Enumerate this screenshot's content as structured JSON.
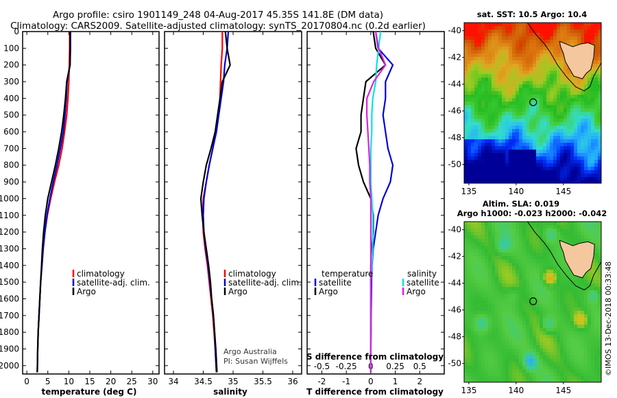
{
  "title_line1": "Argo profile: csiro 1901149_248 04-Aug-2017 45.35S 141.8E (DM data)",
  "title_line2": "Climatology: CARS2009. Satellite-adjusted climatology: synTS_20170804.nc (0.2d earlier)",
  "credit_line1": "Argo Australia",
  "credit_line2": "PI: Susan Wijffels",
  "side_stamp": "©IMOS 13-Dec-2018 00:33:48",
  "colors": {
    "climatology": "#ff0000",
    "satellite": "#0000dd",
    "argo": "#000000",
    "satellite_s": "#00e5e5",
    "argo_s": "#dd22dd"
  },
  "chart_data": [
    {
      "type": "line",
      "xlabel": "temperature (deg C)",
      "ylabel": "",
      "xlim": [
        -1,
        31.5
      ],
      "ylim": [
        2050,
        0
      ],
      "xticks": [
        0,
        5,
        10,
        15,
        20,
        25,
        30
      ],
      "yticks": [
        0,
        100,
        200,
        300,
        400,
        500,
        600,
        700,
        800,
        900,
        1000,
        1100,
        1200,
        1300,
        1400,
        1500,
        1600,
        1700,
        1800,
        1900,
        2000
      ],
      "ytick_labels": [
        "0",
        "100",
        "200",
        "300",
        "400",
        "500",
        "600",
        "700",
        "800",
        "900",
        "1000",
        "1100",
        "1200",
        "1300",
        "1400",
        "1500",
        "1600",
        "1700",
        "1800",
        "1900",
        "2000"
      ],
      "legend": [
        "climatology",
        "satellite-adj. clim.",
        "Argo"
      ],
      "series": [
        {
          "name": "climatology",
          "color": "#ff0000",
          "x": [
            10.2,
            10.2,
            10.1,
            10.0,
            9.8,
            9.5,
            9.0,
            8.4,
            7.6,
            6.6,
            5.7,
            4.9,
            4.3,
            3.9,
            3.6,
            3.3,
            3.1,
            2.9,
            2.7,
            2.6,
            2.5
          ],
          "y": [
            0,
            100,
            200,
            300,
            400,
            500,
            600,
            700,
            800,
            900,
            1000,
            1100,
            1200,
            1300,
            1400,
            1500,
            1600,
            1700,
            1800,
            1900,
            2040
          ]
        },
        {
          "name": "satellite-adj. clim.",
          "color": "#0000dd",
          "x": [
            10.4,
            10.4,
            10.3,
            9.6,
            9.4,
            9.1,
            8.7,
            8.0,
            7.2,
            6.3,
            5.5,
            4.8,
            4.3,
            3.9,
            3.6,
            3.3,
            3.1,
            2.9,
            2.7,
            2.6,
            2.5
          ],
          "y": [
            0,
            100,
            200,
            300,
            400,
            500,
            600,
            700,
            800,
            900,
            1000,
            1100,
            1200,
            1300,
            1400,
            1500,
            1600,
            1700,
            1800,
            1900,
            2040
          ]
        },
        {
          "name": "Argo",
          "color": "#000000",
          "x": [
            10.3,
            10.3,
            10.3,
            9.5,
            9.2,
            8.8,
            8.3,
            7.6,
            6.8,
            5.9,
            5.0,
            4.4,
            4.0,
            3.7,
            3.5,
            3.3,
            3.1,
            2.9,
            2.7,
            2.6,
            2.5
          ],
          "y": [
            0,
            100,
            200,
            300,
            400,
            500,
            600,
            700,
            800,
            900,
            1000,
            1100,
            1200,
            1300,
            1400,
            1500,
            1600,
            1700,
            1800,
            1900,
            2040
          ]
        }
      ]
    },
    {
      "type": "line",
      "xlabel": "salinity",
      "xlim": [
        33.85,
        36.15
      ],
      "ylim": [
        2050,
        0
      ],
      "xticks": [
        34,
        34.5,
        35,
        35.5,
        36
      ],
      "xtick_labels": [
        "34",
        "34.5",
        "35",
        "35.5",
        "36"
      ],
      "yticks": [
        0,
        100,
        200,
        300,
        400,
        500,
        600,
        700,
        800,
        900,
        1000,
        1100,
        1200,
        1300,
        1400,
        1500,
        1600,
        1700,
        1800,
        1900,
        2000
      ],
      "legend": [
        "climatology",
        "satellite-adj. clim.",
        "Argo"
      ],
      "series": [
        {
          "name": "climatology",
          "color": "#ff0000",
          "x": [
            34.82,
            34.82,
            34.8,
            34.79,
            34.78,
            34.75,
            34.71,
            34.66,
            34.6,
            34.55,
            34.5,
            34.49,
            34.5,
            34.53,
            34.57,
            34.6,
            34.63,
            34.66,
            34.68,
            34.7,
            34.72
          ],
          "y": [
            0,
            100,
            200,
            300,
            400,
            500,
            600,
            700,
            800,
            900,
            1000,
            1100,
            1200,
            1300,
            1400,
            1500,
            1600,
            1700,
            1800,
            1900,
            2040
          ]
        },
        {
          "name": "satellite-adj. clim.",
          "color": "#0000dd",
          "x": [
            34.92,
            34.9,
            34.86,
            34.84,
            34.8,
            34.76,
            34.72,
            34.66,
            34.6,
            34.55,
            34.51,
            34.5,
            34.51,
            34.54,
            34.58,
            34.61,
            34.64,
            34.67,
            34.69,
            34.7,
            34.72
          ],
          "y": [
            0,
            100,
            200,
            300,
            400,
            500,
            600,
            700,
            800,
            900,
            1000,
            1100,
            1200,
            1300,
            1400,
            1500,
            1600,
            1700,
            1800,
            1900,
            2040
          ]
        },
        {
          "name": "Argo",
          "color": "#000000",
          "x": [
            34.87,
            34.9,
            34.95,
            34.82,
            34.78,
            34.74,
            34.7,
            34.63,
            34.55,
            34.5,
            34.46,
            34.48,
            34.51,
            34.55,
            34.59,
            34.62,
            34.64,
            34.67,
            34.69,
            34.71,
            34.73
          ],
          "y": [
            0,
            100,
            200,
            300,
            400,
            500,
            600,
            700,
            800,
            900,
            1000,
            1100,
            1200,
            1300,
            1400,
            1500,
            1600,
            1700,
            1800,
            1900,
            2040
          ]
        }
      ]
    },
    {
      "type": "line",
      "xlabel": "T difference from climatology",
      "xlabel_top": "S difference from climatology",
      "xlim": [
        -2.6,
        3.0
      ],
      "xlim_top": [
        -0.65,
        0.75
      ],
      "ylim": [
        2050,
        0
      ],
      "xticks": [
        -2,
        -1,
        0,
        1,
        2
      ],
      "xtick_labels": [
        "-2",
        "-1",
        "0",
        "1",
        "2"
      ],
      "xticks_top": [
        -0.5,
        -0.25,
        0,
        0.25,
        0.5
      ],
      "xtick_labels_top": [
        "-0.5",
        "-0.25",
        "0",
        "0.25",
        "0.5"
      ],
      "yticks": [
        0,
        100,
        200,
        300,
        400,
        500,
        600,
        700,
        800,
        900,
        1000,
        1100,
        1200,
        1300,
        1400,
        1500,
        1600,
        1700,
        1800,
        1900,
        2000
      ],
      "legend_left_header": "temperature",
      "legend_right_header": "salinity",
      "legend_left": [
        "satellite",
        "Argo"
      ],
      "legend_right": [
        "satellite",
        "Argo"
      ],
      "series": [
        {
          "name": "satellite",
          "group": "temperature",
          "color": "#0000dd",
          "x": [
            0.2,
            0.3,
            0.9,
            0.6,
            0.6,
            0.5,
            0.6,
            0.7,
            0.9,
            0.8,
            0.5,
            0.3,
            0.2,
            0.1,
            0.05,
            0.03,
            0.02,
            0.01,
            0.01,
            0.0,
            0.0
          ],
          "y": [
            0,
            100,
            200,
            300,
            400,
            500,
            600,
            700,
            800,
            900,
            1000,
            1100,
            1200,
            1300,
            1400,
            1500,
            1600,
            1700,
            1800,
            1900,
            2040
          ]
        },
        {
          "name": "Argo",
          "group": "temperature",
          "color": "#000000",
          "x": [
            0.1,
            0.2,
            0.6,
            -0.2,
            -0.3,
            -0.4,
            -0.4,
            -0.6,
            -0.5,
            -0.3,
            0.0,
            0.1,
            0.1,
            0.05,
            0.0,
            0.0,
            0.0,
            0.0,
            0.0,
            0.0,
            0.0
          ],
          "y": [
            0,
            100,
            200,
            300,
            400,
            500,
            600,
            700,
            800,
            900,
            1000,
            1100,
            1200,
            1300,
            1400,
            1500,
            1600,
            1700,
            1800,
            1900,
            2040
          ]
        },
        {
          "name": "satellite",
          "group": "salinity",
          "color": "#00e5e5",
          "x": [
            0.1,
            0.08,
            0.06,
            0.05,
            0.02,
            0.01,
            0.01,
            0.0,
            0.0,
            0.0,
            0.01,
            0.02,
            0.02,
            0.02,
            0.01,
            0.0,
            0.0,
            0.0,
            0.0,
            0.0,
            0.0
          ],
          "y": [
            0,
            100,
            200,
            300,
            400,
            500,
            600,
            700,
            800,
            900,
            1000,
            1100,
            1200,
            1300,
            1400,
            1500,
            1600,
            1700,
            1800,
            1900,
            2040
          ]
        },
        {
          "name": "Argo",
          "group": "salinity",
          "color": "#dd22dd",
          "x": [
            0.05,
            0.08,
            0.15,
            0.03,
            -0.04,
            -0.04,
            -0.03,
            -0.02,
            -0.01,
            -0.01,
            0.0,
            0.0,
            0.0,
            0.0,
            0.0,
            0.0,
            0.0,
            0.0,
            0.0,
            0.0,
            0.0
          ],
          "y": [
            0,
            100,
            200,
            300,
            400,
            500,
            600,
            700,
            800,
            900,
            1000,
            1100,
            1200,
            1300,
            1400,
            1500,
            1600,
            1700,
            1800,
            1900,
            2040
          ]
        }
      ]
    },
    {
      "type": "heatmap",
      "title": "sat. SST: 10.5 Argo: 10.4",
      "xlim": [
        134.5,
        149
      ],
      "ylim": [
        -51.4,
        -39.4
      ],
      "xticks": [
        135,
        140,
        145
      ],
      "yticks": [
        -40,
        -42,
        -44,
        -46,
        -48,
        -50
      ],
      "marker": {
        "lon": 141.8,
        "lat": -45.35
      }
    },
    {
      "type": "heatmap",
      "title": "Altim. SLA: 0.019",
      "subtitle": "Argo h1000: -0.023 h2000: -0.042",
      "xlim": [
        134.5,
        149
      ],
      "ylim": [
        -51.4,
        -39.4
      ],
      "xticks": [
        135,
        140,
        145
      ],
      "yticks": [
        -40,
        -42,
        -44,
        -46,
        -48,
        -50
      ],
      "marker": {
        "lon": 141.8,
        "lat": -45.35
      }
    }
  ]
}
